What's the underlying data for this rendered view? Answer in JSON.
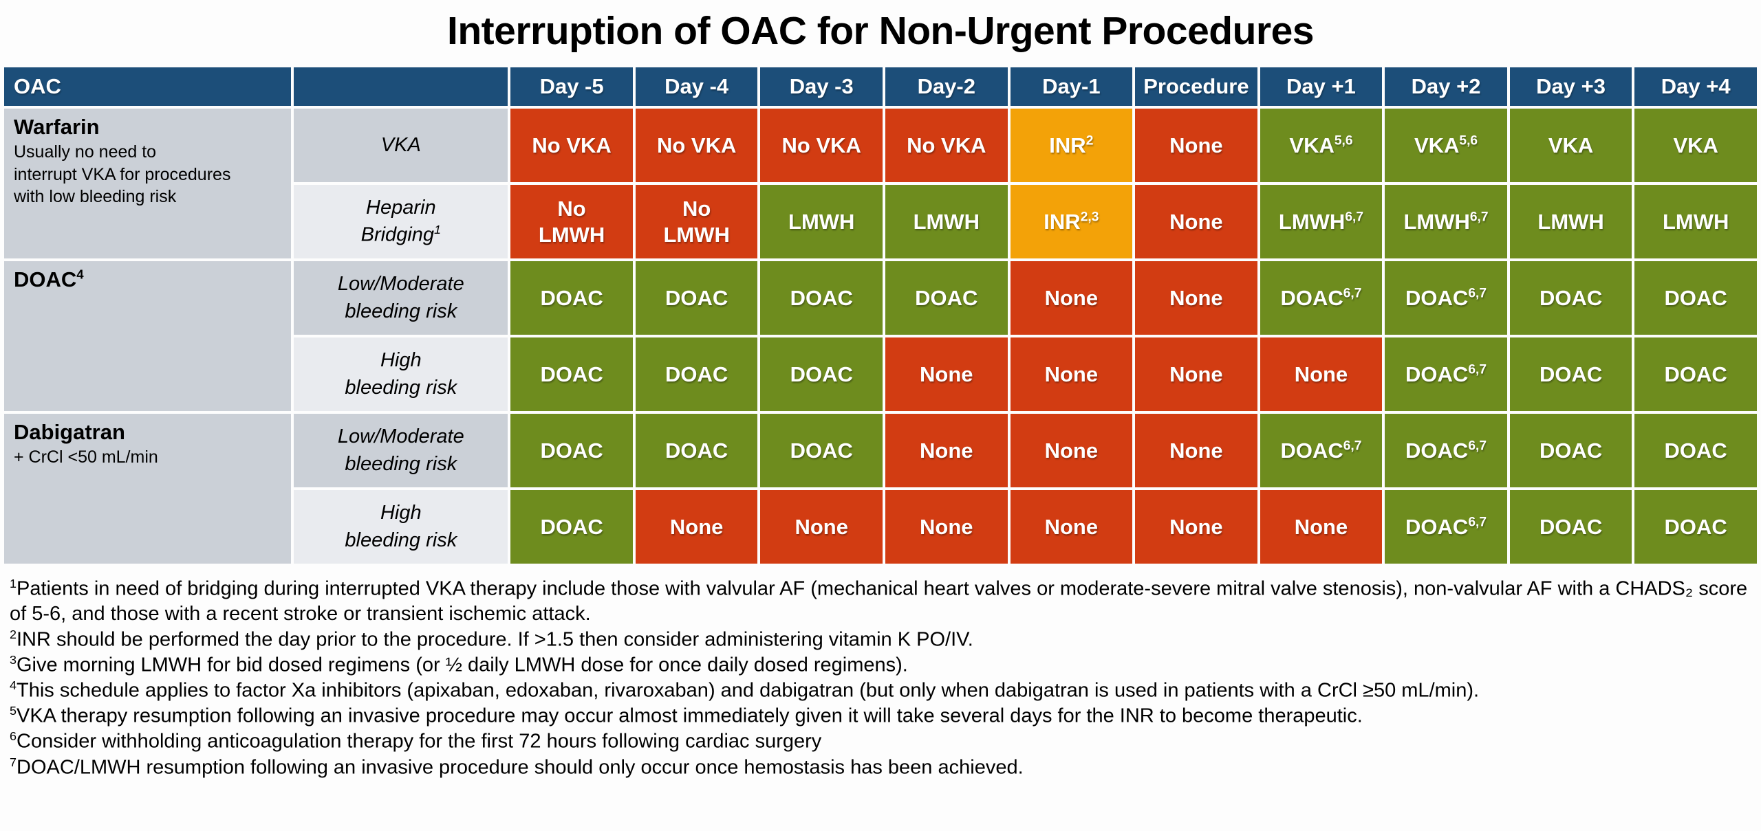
{
  "title": "Interruption of OAC for Non-Urgent Procedures",
  "colors": {
    "header_blue": "#1C4E79",
    "stop_red": "#D23C12",
    "continue_green": "#6E8C1E",
    "check_orange": "#F3A208",
    "label_gray": "#CBD0D7",
    "label_light_gray": "#E9EBEF"
  },
  "table": {
    "headers": [
      {
        "label": "OAC"
      },
      {
        "label": ""
      },
      {
        "label": "Day -5"
      },
      {
        "label": "Day -4"
      },
      {
        "label": "Day -3"
      },
      {
        "label": "Day-2"
      },
      {
        "label": "Day-1"
      },
      {
        "label": "Procedure"
      },
      {
        "label": "Day +1"
      },
      {
        "label": "Day +2"
      },
      {
        "label": "Day +3"
      },
      {
        "label": "Day +4"
      }
    ],
    "groups": [
      {
        "name": "warfarin",
        "label": {
          "title": "Warfarin",
          "sup": "",
          "desc": "Usually no need to\ninterrupt VKA for procedures\nwith low bleeding risk"
        },
        "rows": [
          {
            "sub": "VKA",
            "sub_sup": "",
            "shade": "dark",
            "cells": [
              {
                "t": "No VKA",
                "sup": "",
                "c": "red"
              },
              {
                "t": "No VKA",
                "sup": "",
                "c": "red"
              },
              {
                "t": "No VKA",
                "sup": "",
                "c": "red"
              },
              {
                "t": "No VKA",
                "sup": "",
                "c": "red"
              },
              {
                "t": "INR",
                "sup": "2",
                "c": "orange"
              },
              {
                "t": "None",
                "sup": "",
                "c": "red"
              },
              {
                "t": "VKA",
                "sup": "5,6",
                "c": "green"
              },
              {
                "t": "VKA",
                "sup": "5,6",
                "c": "green"
              },
              {
                "t": "VKA",
                "sup": "",
                "c": "green"
              },
              {
                "t": "VKA",
                "sup": "",
                "c": "green"
              }
            ]
          },
          {
            "sub": "Heparin\nBridging",
            "sub_sup": "1",
            "shade": "light",
            "cells": [
              {
                "t": "No\nLMWH",
                "sup": "",
                "c": "red"
              },
              {
                "t": "No\nLMWH",
                "sup": "",
                "c": "red"
              },
              {
                "t": "LMWH",
                "sup": "",
                "c": "green"
              },
              {
                "t": "LMWH",
                "sup": "",
                "c": "green"
              },
              {
                "t": "INR",
                "sup": "2,3",
                "c": "orange"
              },
              {
                "t": "None",
                "sup": "",
                "c": "red"
              },
              {
                "t": "LMWH",
                "sup": "6,7",
                "c": "green"
              },
              {
                "t": "LMWH",
                "sup": "6,7",
                "c": "green"
              },
              {
                "t": "LMWH",
                "sup": "",
                "c": "green"
              },
              {
                "t": "LMWH",
                "sup": "",
                "c": "green"
              }
            ]
          }
        ]
      },
      {
        "name": "doac",
        "label": {
          "title": "DOAC",
          "sup": "4",
          "desc": ""
        },
        "rows": [
          {
            "sub": "Low/Moderate\nbleeding risk",
            "sub_sup": "",
            "shade": "dark",
            "cells": [
              {
                "t": "DOAC",
                "sup": "",
                "c": "green"
              },
              {
                "t": "DOAC",
                "sup": "",
                "c": "green"
              },
              {
                "t": "DOAC",
                "sup": "",
                "c": "green"
              },
              {
                "t": "DOAC",
                "sup": "",
                "c": "green"
              },
              {
                "t": "None",
                "sup": "",
                "c": "red"
              },
              {
                "t": "None",
                "sup": "",
                "c": "red"
              },
              {
                "t": "DOAC",
                "sup": "6,7",
                "c": "green"
              },
              {
                "t": "DOAC",
                "sup": "6,7",
                "c": "green"
              },
              {
                "t": "DOAC",
                "sup": "",
                "c": "green"
              },
              {
                "t": "DOAC",
                "sup": "",
                "c": "green"
              }
            ]
          },
          {
            "sub": "High\nbleeding risk",
            "sub_sup": "",
            "shade": "light",
            "cells": [
              {
                "t": "DOAC",
                "sup": "",
                "c": "green"
              },
              {
                "t": "DOAC",
                "sup": "",
                "c": "green"
              },
              {
                "t": "DOAC",
                "sup": "",
                "c": "green"
              },
              {
                "t": "None",
                "sup": "",
                "c": "red"
              },
              {
                "t": "None",
                "sup": "",
                "c": "red"
              },
              {
                "t": "None",
                "sup": "",
                "c": "red"
              },
              {
                "t": "None",
                "sup": "",
                "c": "red"
              },
              {
                "t": "DOAC",
                "sup": "6,7",
                "c": "green"
              },
              {
                "t": "DOAC",
                "sup": "",
                "c": "green"
              },
              {
                "t": "DOAC",
                "sup": "",
                "c": "green"
              }
            ]
          }
        ]
      },
      {
        "name": "dabigatran",
        "label": {
          "title": "Dabigatran",
          "sup": "",
          "desc": "+ CrCl <50 mL/min"
        },
        "rows": [
          {
            "sub": "Low/Moderate\nbleeding risk",
            "sub_sup": "",
            "shade": "dark",
            "cells": [
              {
                "t": "DOAC",
                "sup": "",
                "c": "green"
              },
              {
                "t": "DOAC",
                "sup": "",
                "c": "green"
              },
              {
                "t": "DOAC",
                "sup": "",
                "c": "green"
              },
              {
                "t": "None",
                "sup": "",
                "c": "red"
              },
              {
                "t": "None",
                "sup": "",
                "c": "red"
              },
              {
                "t": "None",
                "sup": "",
                "c": "red"
              },
              {
                "t": "DOAC",
                "sup": "6,7",
                "c": "green"
              },
              {
                "t": "DOAC",
                "sup": "6,7",
                "c": "green"
              },
              {
                "t": "DOAC",
                "sup": "",
                "c": "green"
              },
              {
                "t": "DOAC",
                "sup": "",
                "c": "green"
              }
            ]
          },
          {
            "sub": "High\nbleeding risk",
            "sub_sup": "",
            "shade": "light",
            "cells": [
              {
                "t": "DOAC",
                "sup": "",
                "c": "green"
              },
              {
                "t": "None",
                "sup": "",
                "c": "red"
              },
              {
                "t": "None",
                "sup": "",
                "c": "red"
              },
              {
                "t": "None",
                "sup": "",
                "c": "red"
              },
              {
                "t": "None",
                "sup": "",
                "c": "red"
              },
              {
                "t": "None",
                "sup": "",
                "c": "red"
              },
              {
                "t": "None",
                "sup": "",
                "c": "red"
              },
              {
                "t": "DOAC",
                "sup": "6,7",
                "c": "green"
              },
              {
                "t": "DOAC",
                "sup": "",
                "c": "green"
              },
              {
                "t": "DOAC",
                "sup": "",
                "c": "green"
              }
            ]
          }
        ]
      }
    ]
  },
  "footnotes": [
    {
      "marker": "1",
      "text": "Patients in need of bridging during interrupted VKA therapy include those with valvular AF (mechanical heart valves or moderate-severe mitral valve stenosis), non-valvular AF with a CHADS₂ score of 5-6, and those with a recent stroke or transient ischemic attack."
    },
    {
      "marker": "2",
      "text": "INR should be performed the day prior to the procedure. If >1.5 then consider administering vitamin K PO/IV."
    },
    {
      "marker": "3",
      "text": "Give morning LMWH for bid dosed regimens (or ½ daily LMWH dose for once daily dosed regimens)."
    },
    {
      "marker": "4",
      "text": "This schedule applies to factor Xa inhibitors (apixaban, edoxaban, rivaroxaban) and dabigatran (but only when dabigatran is used in patients with a CrCl ≥50 mL/min)."
    },
    {
      "marker": "5",
      "text": "VKA therapy resumption following an invasive procedure may occur almost immediately given it will take several days for the INR to become therapeutic."
    },
    {
      "marker": "6",
      "text": "Consider withholding anticoagulation therapy for the first 72 hours following cardiac surgery"
    },
    {
      "marker": "7",
      "text": "DOAC/LMWH resumption following an invasive procedure should only occur once hemostasis has been achieved."
    }
  ]
}
